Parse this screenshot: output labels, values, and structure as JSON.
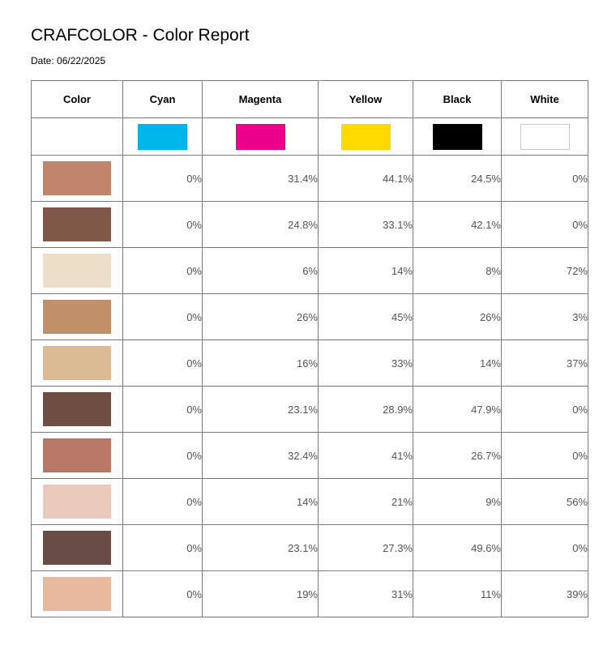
{
  "report": {
    "title": "CRAFCOLOR - Color Report",
    "date": "Date: 06/22/2025"
  },
  "columns": {
    "color": "Color",
    "cyan": "Cyan",
    "magenta": "Magenta",
    "yellow": "Yellow",
    "black": "Black",
    "white": "White"
  },
  "ink_colors": {
    "cyan": "#00b4ec",
    "magenta": "#ec008c",
    "yellow": "#ffd800",
    "black": "#000000",
    "white": "#ffffff"
  },
  "rows": [
    {
      "swatch": "#c0846a",
      "cyan": "0%",
      "magenta": "31.4%",
      "yellow": "44.1%",
      "black": "24.5%",
      "white": "0%"
    },
    {
      "swatch": "#80584a",
      "cyan": "0%",
      "magenta": "24.8%",
      "yellow": "33.1%",
      "black": "42.1%",
      "white": "0%"
    },
    {
      "swatch": "#ebdfca",
      "cyan": "0%",
      "magenta": "6%",
      "yellow": "14%",
      "black": "8%",
      "white": "72%"
    },
    {
      "swatch": "#c0906a",
      "cyan": "0%",
      "magenta": "26%",
      "yellow": "45%",
      "black": "26%",
      "white": "3%"
    },
    {
      "swatch": "#dbba94",
      "cyan": "0%",
      "magenta": "16%",
      "yellow": "33%",
      "black": "14%",
      "white": "37%"
    },
    {
      "swatch": "#6e4d44",
      "cyan": "0%",
      "magenta": "23.1%",
      "yellow": "28.9%",
      "black": "47.9%",
      "white": "0%"
    },
    {
      "swatch": "#b87868",
      "cyan": "0%",
      "magenta": "32.4%",
      "yellow": "41%",
      "black": "26.7%",
      "white": "0%"
    },
    {
      "swatch": "#eac8bc",
      "cyan": "0%",
      "magenta": "14%",
      "yellow": "21%",
      "black": "9%",
      "white": "56%"
    },
    {
      "swatch": "#694c44",
      "cyan": "0%",
      "magenta": "23.1%",
      "yellow": "27.3%",
      "black": "49.6%",
      "white": "0%"
    },
    {
      "swatch": "#e6b89e",
      "cyan": "0%",
      "magenta": "19%",
      "yellow": "31%",
      "black": "11%",
      "white": "39%"
    }
  ]
}
